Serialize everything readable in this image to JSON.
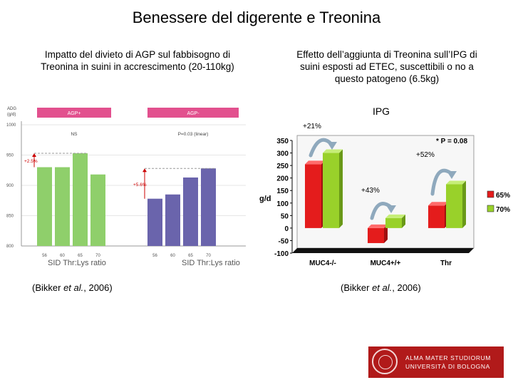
{
  "title": "Benessere del digerente e Treonina",
  "left_caption": {
    "line1": "Impatto del divieto di  AGP sul fabbisogno di",
    "line2": "Treonina in suini in accrescimento (20-110kg)"
  },
  "right_caption": {
    "line1": "Effetto dell’aggiunta di Treonina sull’IPG di",
    "line2": "suini  esposti ad ETEC, suscettibili o no a",
    "line3": "questo patogeno  (6.5kg)"
  },
  "ipg_label": "IPG",
  "citations": {
    "left_prefix": "(Bikker ",
    "etal": "et al.",
    "left_suffix": ", 2006)"
  },
  "logo": {
    "line1": "ALMA MATER STUDIORUM",
    "line2": "UNIVERSITÀ DI BOLOGNA"
  },
  "chart_data": [
    {
      "type": "bar",
      "ylabel_line1": "ADG",
      "ylabel_line2": "(g/d)",
      "ylim": [
        800,
        1000
      ],
      "yticks": [
        800,
        850,
        900,
        950,
        1000
      ],
      "xlabel": "SID Thr:Lys ratio",
      "panels": [
        {
          "name": "AGP+",
          "note": "NS",
          "increase": "+2.5%",
          "color": "#8fcf6b",
          "categories": [
            "56",
            "60",
            "65",
            "70"
          ],
          "values": [
            930,
            930,
            953,
            918
          ]
        },
        {
          "name": "AGP-",
          "note": "P=0.03 (linear)",
          "increase": "+5.6%",
          "color": "#6a64ac",
          "categories": [
            "56",
            "60",
            "65",
            "70"
          ],
          "values": [
            878,
            885,
            913,
            928
          ]
        }
      ]
    },
    {
      "type": "bar",
      "ylabel": "g/d",
      "ylim": [
        -100,
        350
      ],
      "yticks": [
        -100,
        -50,
        0,
        50,
        100,
        150,
        200,
        250,
        300,
        350
      ],
      "categories": [
        "MUC4-/-",
        "MUC4+/+",
        "Thr"
      ],
      "series": [
        {
          "name": "65%",
          "color": "#e41c1c",
          "values": [
            255,
            -60,
            90
          ]
        },
        {
          "name": "70%",
          "color": "#99d12a",
          "values": [
            300,
            40,
            175
          ]
        }
      ],
      "annotations": [
        "+21%",
        "+43%",
        "+52%",
        "* P = 0.08"
      ],
      "legend_position": "right"
    }
  ]
}
